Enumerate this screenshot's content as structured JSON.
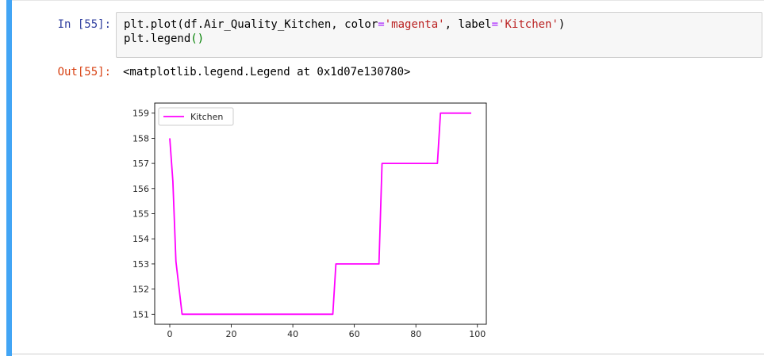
{
  "cell": {
    "in_prompt": "In [55]:",
    "out_prompt": "Out[55]:",
    "code": {
      "line1": {
        "a": "plt.plot(df.Air_Quality_Kitchen, color",
        "b": "=",
        "c": "'magenta'",
        "d": ", label",
        "e": "=",
        "f": "'Kitchen'",
        "g": ")"
      },
      "line2": {
        "a": "plt.legend",
        "b": "()"
      }
    },
    "output_text": "<matplotlib.legend.Legend at 0x1d07e130780>"
  },
  "colors": {
    "accent_bar": "#42a5f5",
    "line": "#ff00ff"
  },
  "chart_data": {
    "type": "line",
    "series": [
      {
        "name": "Kitchen",
        "color": "magenta",
        "x": [
          0,
          1,
          2,
          4,
          53,
          54,
          68,
          69,
          87,
          88,
          98
        ],
        "y": [
          158,
          156.3,
          153.1,
          151,
          151,
          153,
          153,
          157,
          157,
          159,
          159
        ]
      }
    ],
    "x_ticks": [
      0,
      20,
      40,
      60,
      80,
      100
    ],
    "y_ticks": [
      151,
      152,
      153,
      154,
      155,
      156,
      157,
      158,
      159
    ],
    "xlim": [
      -4.9,
      102.9
    ],
    "ylim": [
      150.6,
      159.4
    ],
    "legend": "upper left",
    "grid": false
  }
}
